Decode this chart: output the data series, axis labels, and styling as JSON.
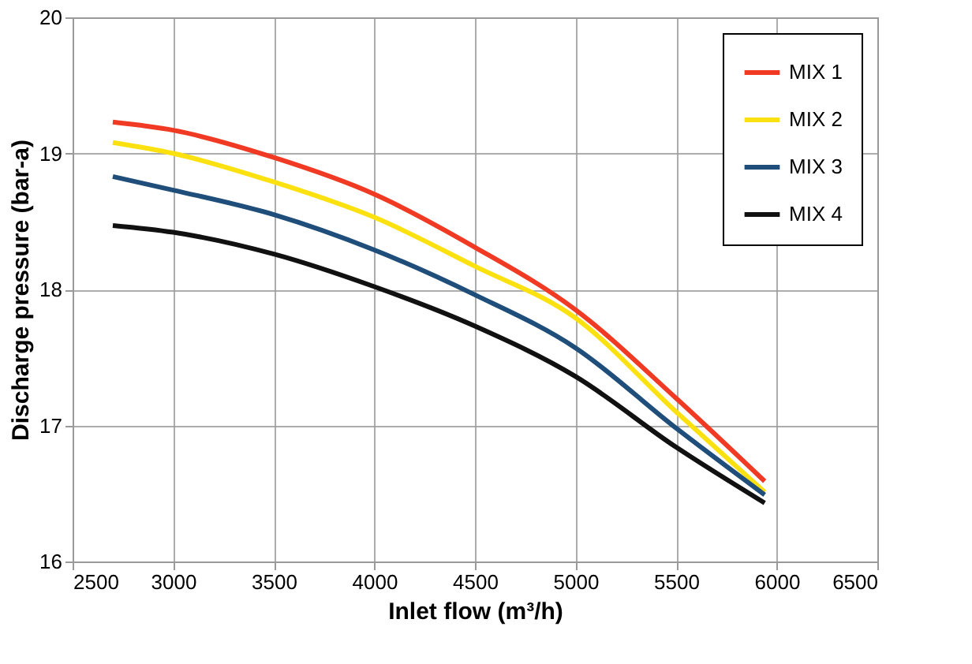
{
  "chart_data": {
    "type": "line",
    "xlabel": "Inlet flow (m³/h)",
    "ylabel": "Discharge pressure (bar-a)",
    "x": [
      2700,
      3000,
      3500,
      4000,
      4500,
      5000,
      5500,
      5940
    ],
    "series": [
      {
        "name": "MIX 1",
        "color": "#f03a24",
        "values": [
          19.23,
          19.17,
          18.97,
          18.7,
          18.31,
          17.85,
          17.2,
          16.59
        ]
      },
      {
        "name": "MIX 2",
        "color": "#fbe10f",
        "values": [
          19.08,
          19.0,
          18.79,
          18.53,
          18.17,
          17.79,
          17.1,
          16.51
        ]
      },
      {
        "name": "MIX 3",
        "color": "#1f4e7a",
        "values": [
          18.83,
          18.73,
          18.55,
          18.29,
          17.96,
          17.57,
          16.98,
          16.49
        ]
      },
      {
        "name": "MIX 4",
        "color": "#111111",
        "values": [
          18.47,
          18.42,
          18.26,
          18.02,
          17.73,
          17.36,
          16.84,
          16.43
        ]
      }
    ],
    "xlim": [
      2500,
      6500
    ],
    "xticks": [
      2500,
      3000,
      3500,
      4000,
      4500,
      5000,
      5500,
      6000,
      6500
    ],
    "ylim": [
      16,
      20
    ],
    "yticks": [
      16,
      17,
      18,
      19,
      20
    ],
    "grid": true,
    "legend": "top right",
    "marker": "none",
    "line_style": "solid"
  }
}
